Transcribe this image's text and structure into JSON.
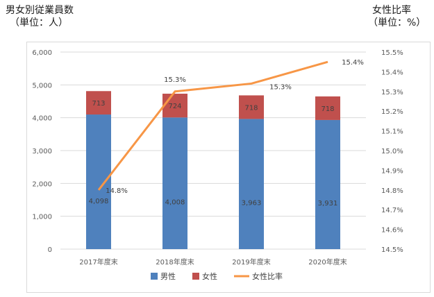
{
  "left_title": "男女別従業員数",
  "left_unit": "（単位：人）",
  "right_title": "女性比率",
  "right_unit": "（単位：%）",
  "chart_data": {
    "type": "bar",
    "stacked": true,
    "categories": [
      "2017年度末",
      "2018年度末",
      "2019年度末",
      "2020年度末"
    ],
    "series": [
      {
        "name": "男性",
        "type": "bar",
        "axis": "left",
        "color": "#4f81bd",
        "values": [
          4098,
          4008,
          3963,
          3931
        ],
        "labels": [
          "4,098",
          "4,008",
          "3,963",
          "3,931"
        ]
      },
      {
        "name": "女性",
        "type": "bar",
        "axis": "left",
        "color": "#c0504d",
        "values": [
          713,
          724,
          718,
          718
        ],
        "labels": [
          "713",
          "724",
          "718",
          "718"
        ]
      },
      {
        "name": "女性比率",
        "type": "line",
        "axis": "right",
        "color": "#f79646",
        "values": [
          14.8,
          15.3,
          15.34,
          15.45
        ],
        "labels": [
          "14.8%",
          "15.3%",
          "15.3%",
          "15.4%"
        ]
      }
    ],
    "y_left": {
      "min": 0,
      "max": 6000,
      "ticks": [
        0,
        1000,
        2000,
        3000,
        4000,
        5000,
        6000
      ],
      "tick_labels": [
        "0",
        "1,000",
        "2,000",
        "3,000",
        "4,000",
        "5,000",
        "6,000"
      ]
    },
    "y_right": {
      "min": 14.5,
      "max": 15.5,
      "ticks": [
        14.5,
        14.6,
        14.7,
        14.8,
        14.9,
        15.0,
        15.1,
        15.2,
        15.3,
        15.4,
        15.5
      ],
      "tick_labels": [
        "14.5%",
        "14.6%",
        "14.7%",
        "14.8%",
        "14.9%",
        "15.0%",
        "15.1%",
        "15.2%",
        "15.3%",
        "15.4%",
        "15.5%"
      ]
    },
    "grid": true,
    "legend": "bottom"
  }
}
